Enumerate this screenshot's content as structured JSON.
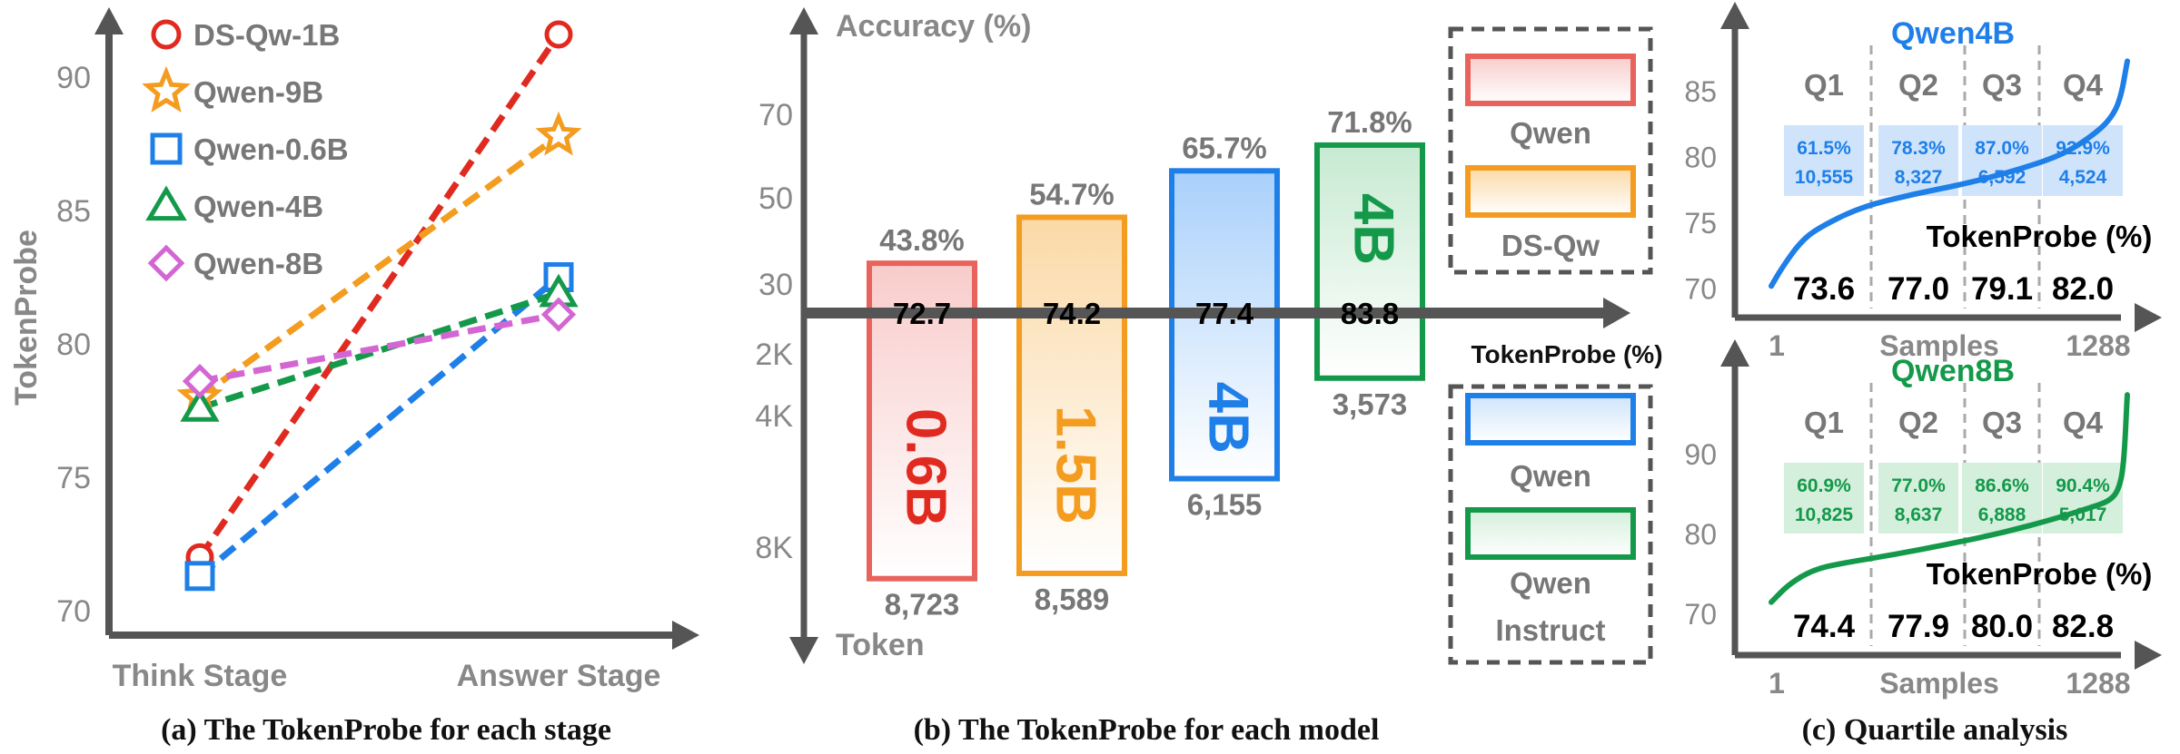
{
  "chart_data": [
    {
      "type": "line",
      "caption": "(a) The TokenProbe for each stage",
      "ylabel": "TokenProbe",
      "categories": [
        "Think Stage",
        "Answer Stage"
      ],
      "yticks": [
        70,
        75,
        80,
        85,
        90
      ],
      "ylim": [
        68.5,
        93
      ],
      "legend_position": "top-left",
      "series": [
        {
          "name": "DS-Qw-1B",
          "marker": "circle",
          "color": "#e02a20",
          "values": [
            72.0,
            91.6
          ]
        },
        {
          "name": "Qwen-9B",
          "marker": "star",
          "color": "#f39c1f",
          "values": [
            78.0,
            87.8
          ]
        },
        {
          "name": "Qwen-0.6B",
          "marker": "square",
          "color": "#1f7fe8",
          "values": [
            71.3,
            82.5
          ]
        },
        {
          "name": "Qwen-4B",
          "marker": "triangle",
          "color": "#14994a",
          "values": [
            77.6,
            81.9
          ]
        },
        {
          "name": "Qwen-8B",
          "marker": "diamond",
          "color": "#d366d3",
          "values": [
            78.6,
            81.1
          ]
        }
      ]
    },
    {
      "type": "bar",
      "caption": "(b) The TokenProbe for each model",
      "ylabel_top": "Accuracy (%)",
      "ylabel_bottom": "Token",
      "axis_label": "TokenProbe (%)",
      "ticks_top": [
        30,
        50,
        70
      ],
      "ticks_bottom": [
        "2K",
        "4K",
        "8K"
      ],
      "bars": [
        {
          "size": "0.6B",
          "accuracy": "43.8%",
          "tokenprobe": "72.7",
          "tokens": "8,723",
          "acc": 43.8,
          "tok": 8723,
          "stroke": "#e8635b",
          "fill_top": "#f8cccb",
          "text": "#e02a20"
        },
        {
          "size": "1.5B",
          "accuracy": "54.7%",
          "tokenprobe": "74.2",
          "tokens": "8,589",
          "acc": 54.7,
          "tok": 8589,
          "stroke": "#f39c1f",
          "fill_top": "#fbd9a6",
          "text": "#f39c1f"
        },
        {
          "size": "4B",
          "accuracy": "65.7%",
          "tokenprobe": "77.4",
          "tokens": "6,155",
          "acc": 65.7,
          "tok": 6155,
          "stroke": "#1f7fe8",
          "fill_top": "#a9d0fb",
          "text": "#1f7fe8"
        },
        {
          "size": "4B",
          "accuracy": "71.8%",
          "tokenprobe": "83.8",
          "tokens": "3,573",
          "acc": 71.8,
          "tok": 3573,
          "stroke": "#14994a",
          "fill_top": "#c7ead1",
          "text": "#14994a"
        }
      ],
      "legend": [
        {
          "group": "upper",
          "label": "Qwen",
          "stroke": "#e8635b",
          "fill": "#f8cccb"
        },
        {
          "group": "upper",
          "label": "DS-Qw",
          "stroke": "#f39c1f",
          "fill": "#fbd9a6"
        },
        {
          "group": "lower",
          "label": "Qwen",
          "stroke": "#1f7fe8",
          "fill": "#cfe4fb"
        },
        {
          "group": "lower",
          "label": "Qwen Instruct",
          "stroke": "#14994a",
          "fill": "#d4efdc"
        }
      ]
    },
    {
      "type": "line",
      "caption": "(c) Quartile analysis",
      "title": "Qwen4B",
      "color": "#1f7fe8",
      "fill": "#cfe4fb",
      "xlabel": "Samples",
      "xticks": [
        "1",
        "1288"
      ],
      "yticks": [
        70,
        75,
        80,
        85
      ],
      "ylim": [
        68.5,
        88.5
      ],
      "metric_label": "TokenProbe (%)",
      "quartiles": [
        {
          "name": "Q1",
          "pct": "61.5%",
          "count": "10,555",
          "tokenprobe": "73.6"
        },
        {
          "name": "Q2",
          "pct": "78.3%",
          "count": "8,327",
          "tokenprobe": "77.0"
        },
        {
          "name": "Q3",
          "pct": "87.0%",
          "count": "6,592",
          "tokenprobe": "79.1"
        },
        {
          "name": "Q4",
          "pct": "92.9%",
          "count": "4,524",
          "tokenprobe": "82.0"
        }
      ],
      "curve": [
        [
          0.0,
          70.2
        ],
        [
          0.03,
          71.6
        ],
        [
          0.08,
          73.5
        ],
        [
          0.13,
          74.6
        ],
        [
          0.25,
          76.2
        ],
        [
          0.4,
          77.2
        ],
        [
          0.55,
          78.0
        ],
        [
          0.7,
          79.1
        ],
        [
          0.82,
          80.2
        ],
        [
          0.9,
          81.6
        ],
        [
          0.95,
          82.8
        ],
        [
          0.98,
          84.3
        ],
        [
          1.0,
          87.3
        ]
      ]
    },
    {
      "type": "line",
      "title": "Qwen8B",
      "color": "#14994a",
      "fill": "#d4efdc",
      "xlabel": "Samples",
      "xticks": [
        "1",
        "1288"
      ],
      "yticks": [
        70,
        80,
        90
      ],
      "ylim": [
        66,
        99
      ],
      "metric_label": "TokenProbe (%)",
      "quartiles": [
        {
          "name": "Q1",
          "pct": "60.9%",
          "count": "10,825",
          "tokenprobe": "74.4"
        },
        {
          "name": "Q2",
          "pct": "77.0%",
          "count": "8,637",
          "tokenprobe": "77.9"
        },
        {
          "name": "Q3",
          "pct": "86.6%",
          "count": "6,888",
          "tokenprobe": "80.0"
        },
        {
          "name": "Q4",
          "pct": "90.4%",
          "count": "5,017",
          "tokenprobe": "82.8"
        }
      ],
      "curve": [
        [
          0.0,
          71.5
        ],
        [
          0.05,
          73.8
        ],
        [
          0.12,
          75.6
        ],
        [
          0.2,
          76.4
        ],
        [
          0.35,
          77.5
        ],
        [
          0.5,
          78.8
        ],
        [
          0.65,
          80.2
        ],
        [
          0.8,
          82.0
        ],
        [
          0.9,
          83.4
        ],
        [
          0.95,
          84.2
        ],
        [
          0.975,
          85.5
        ],
        [
          0.99,
          88.5
        ],
        [
          1.0,
          97.5
        ]
      ]
    }
  ]
}
